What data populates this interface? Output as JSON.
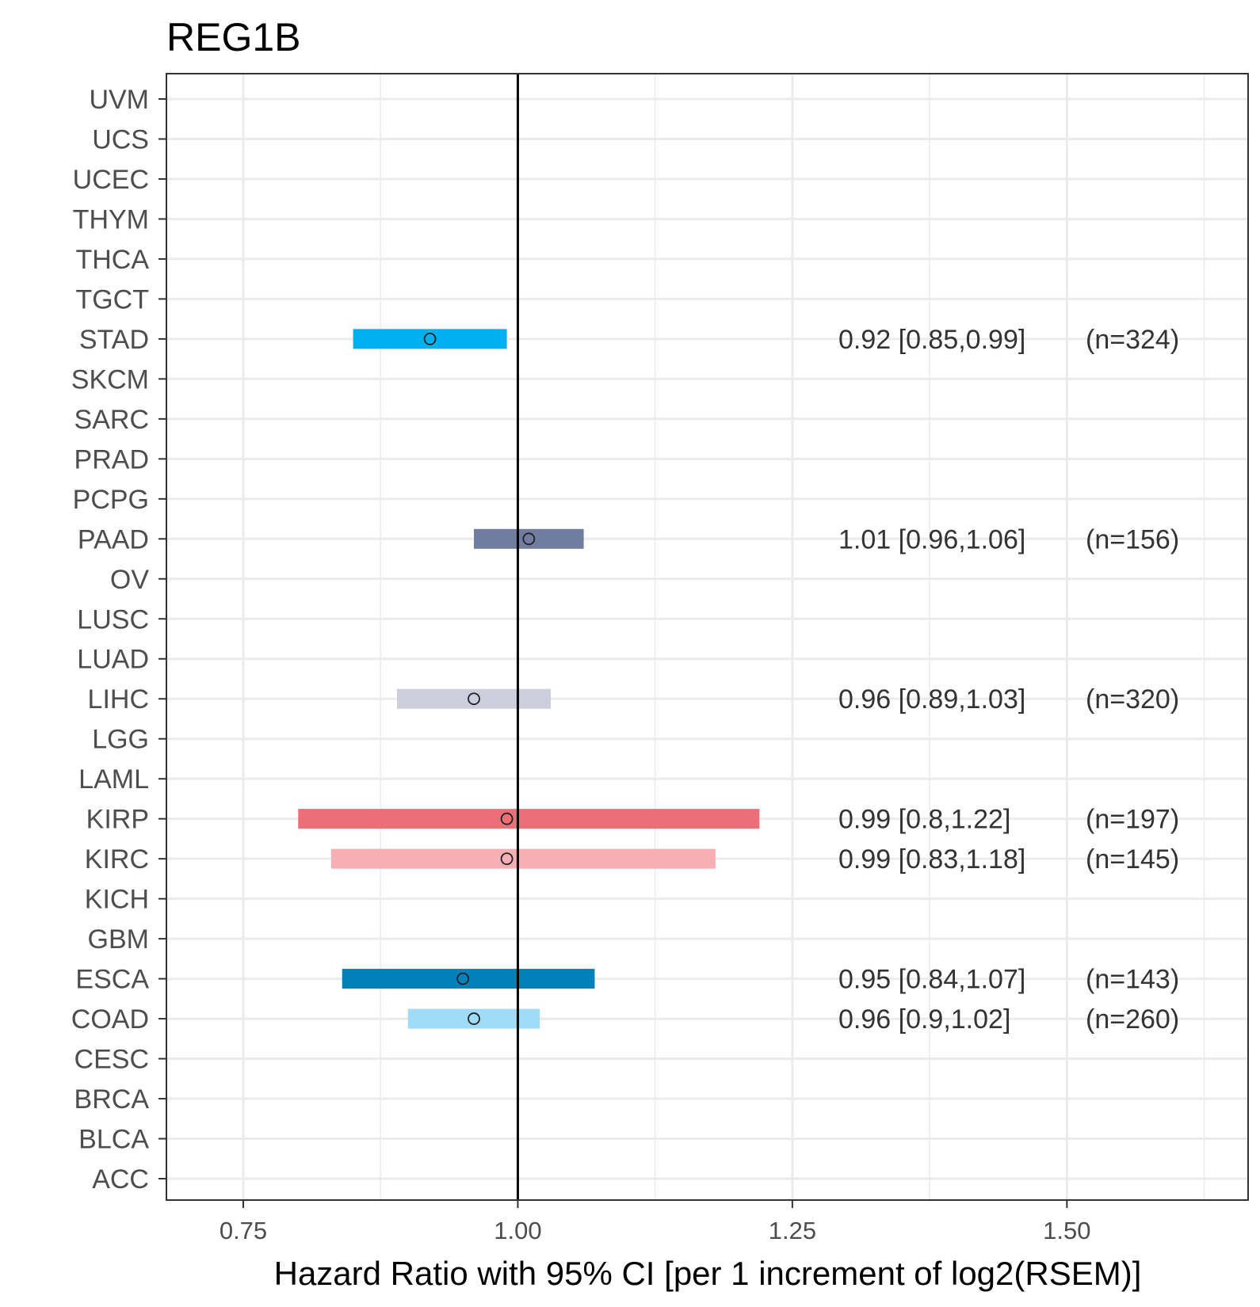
{
  "chart_data": {
    "type": "forest",
    "title": "REG1B",
    "xlabel": "Hazard Ratio with 95% CI [per 1 increment of log2(RSEM)]",
    "ylabel": "",
    "xlim": [
      0.68,
      1.665
    ],
    "xticks": [
      0.75,
      1.0,
      1.25,
      1.5
    ],
    "xtick_labels": [
      "0.75",
      "1.00",
      "1.25",
      "1.50"
    ],
    "reference_line": 1.0,
    "grid": true,
    "categories": [
      "UVM",
      "UCS",
      "UCEC",
      "THYM",
      "THCA",
      "TGCT",
      "STAD",
      "SKCM",
      "SARC",
      "PRAD",
      "PCPG",
      "PAAD",
      "OV",
      "LUSC",
      "LUAD",
      "LIHC",
      "LGG",
      "LAML",
      "KIRP",
      "KIRC",
      "KICH",
      "GBM",
      "ESCA",
      "COAD",
      "CESC",
      "BRCA",
      "BLCA",
      "ACC"
    ],
    "series": [
      {
        "category": "STAD",
        "hr": 0.92,
        "lower": 0.85,
        "upper": 0.99,
        "label": "0.92 [0.85,0.99]",
        "n_label": "(n=324)",
        "color": "#00b0f0"
      },
      {
        "category": "PAAD",
        "hr": 1.01,
        "lower": 0.96,
        "upper": 1.06,
        "label": "1.01 [0.96,1.06]",
        "n_label": "(n=156)",
        "color": "#707ca0"
      },
      {
        "category": "LIHC",
        "hr": 0.96,
        "lower": 0.89,
        "upper": 1.03,
        "label": "0.96 [0.89,1.03]",
        "n_label": "(n=320)",
        "color": "#cdcedd"
      },
      {
        "category": "KIRP",
        "hr": 0.99,
        "lower": 0.8,
        "upper": 1.22,
        "label": "0.99 [0.8,1.22]",
        "n_label": "(n=197)",
        "color": "#eb6f77"
      },
      {
        "category": "KIRC",
        "hr": 0.99,
        "lower": 0.83,
        "upper": 1.18,
        "label": "0.99 [0.83,1.18]",
        "n_label": "(n=145)",
        "color": "#f6afb4"
      },
      {
        "category": "ESCA",
        "hr": 0.95,
        "lower": 0.84,
        "upper": 1.07,
        "label": "0.95 [0.84,1.07]",
        "n_label": "(n=143)",
        "color": "#0081ba"
      },
      {
        "category": "COAD",
        "hr": 0.96,
        "lower": 0.9,
        "upper": 1.02,
        "label": "0.96 [0.9,1.02]",
        "n_label": "(n=260)",
        "color": "#a0dcf8"
      }
    ]
  }
}
